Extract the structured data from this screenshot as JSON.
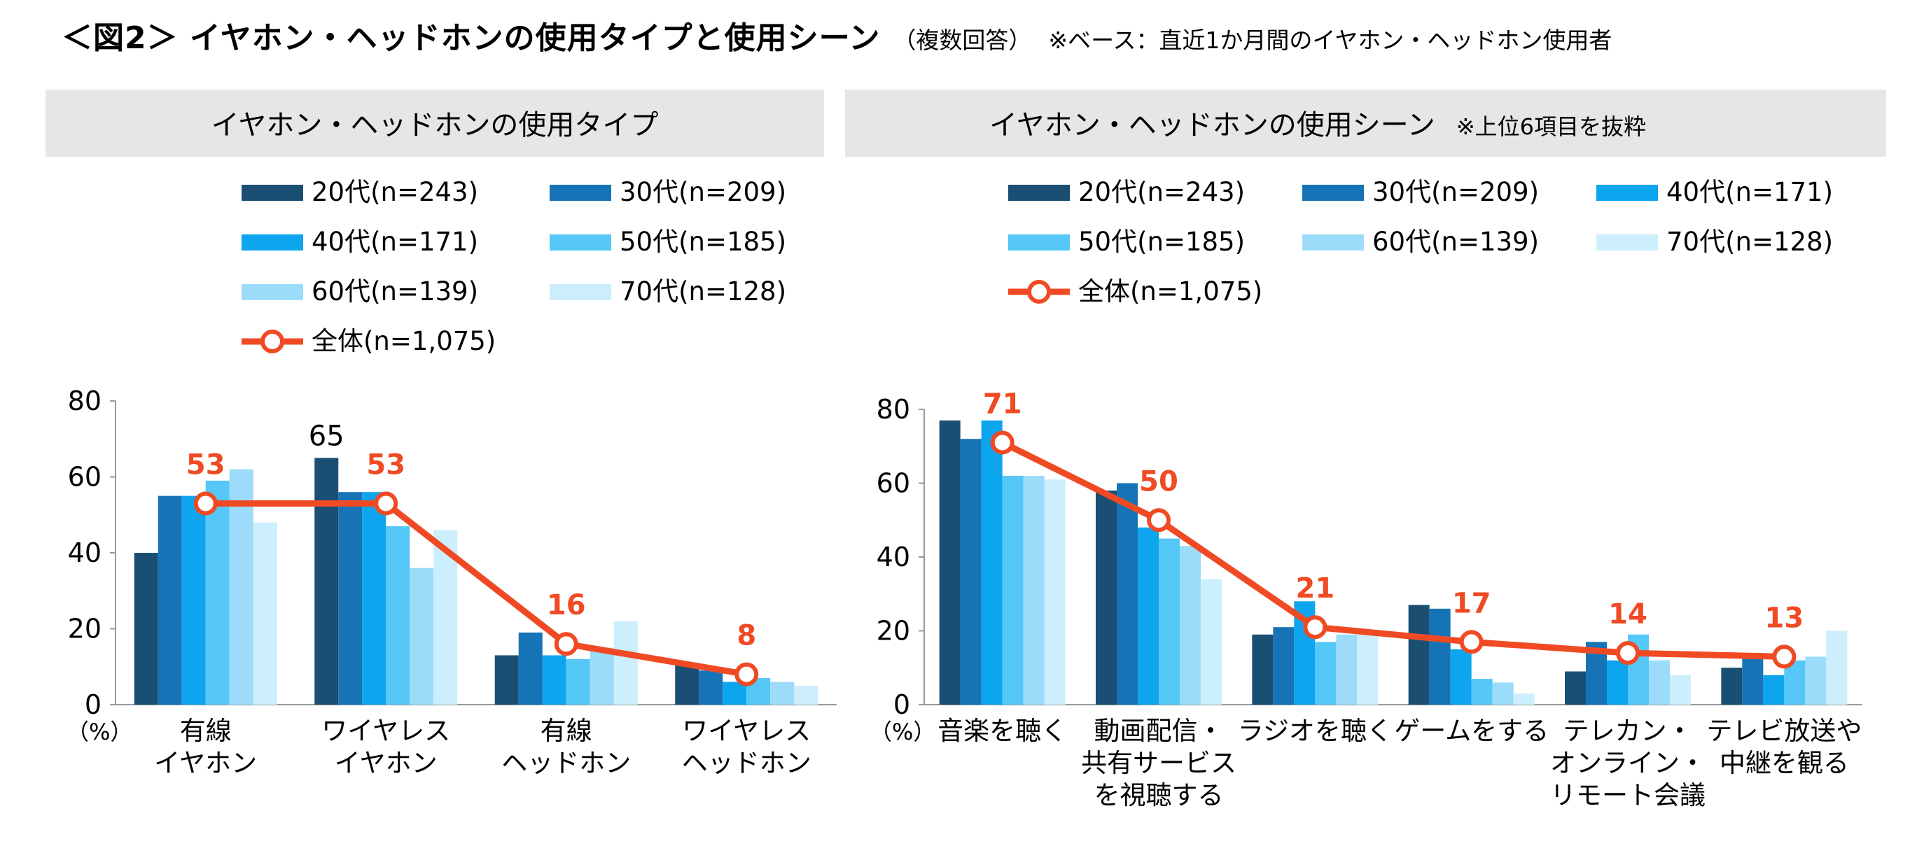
{
  "title": {
    "main": "＜図2＞ イヤホン・ヘッドホンの使用タイプと使用シーン",
    "note": "（複数回答）",
    "base": "※ベース：直近1か月間のイヤホン・ヘッドホン使用者"
  },
  "colors": {
    "series": [
      "#1a4f73",
      "#1674b6",
      "#0ea5ef",
      "#55c8f7",
      "#9cdcfa",
      "#cdeefc"
    ],
    "overall": "#f04a24",
    "panel_header_bg": "#e6e6e6"
  },
  "chart_data": [
    {
      "type": "bar",
      "title": "イヤホン・ヘッドホンの使用タイプ",
      "unit_label": "（%）",
      "ylim": [
        0,
        80
      ],
      "yticks": [
        0,
        20,
        40,
        60,
        80
      ],
      "categories": [
        "有線\nイヤホン",
        "ワイヤレス\nイヤホン",
        "有線\nヘッドホン",
        "ワイヤレス\nヘッドホン"
      ],
      "series": [
        {
          "name": "20代(n=243)",
          "values": [
            40,
            65,
            13,
            11
          ]
        },
        {
          "name": "30代(n=209)",
          "values": [
            55,
            56,
            19,
            9
          ]
        },
        {
          "name": "40代(n=171)",
          "values": [
            55,
            56,
            13,
            6
          ]
        },
        {
          "name": "50代(n=185)",
          "values": [
            59,
            47,
            12,
            7
          ]
        },
        {
          "name": "60代(n=139)",
          "values": [
            62,
            36,
            15,
            6
          ]
        },
        {
          "name": "70代(n=128)",
          "values": [
            48,
            46,
            22,
            5
          ]
        }
      ],
      "overall": {
        "name": "全体(n=1,075)",
        "values": [
          53,
          53,
          16,
          8
        ]
      },
      "annotations": [
        {
          "series_index": 0,
          "category_index": 1,
          "text": "65"
        }
      ]
    },
    {
      "type": "bar",
      "title": "イヤホン・ヘッドホンの使用シーン",
      "subtitle": "※上位6項目を抜粋",
      "unit_label": "（%）",
      "ylim": [
        0,
        80
      ],
      "yticks": [
        0,
        20,
        40,
        60,
        80
      ],
      "categories": [
        "音楽を聴く",
        "動画配信・\n共有サービス\nを視聴する",
        "ラジオを聴く",
        "ゲームをする",
        "テレカン・\nオンライン・\nリモート会議",
        "テレビ放送や\n中継を観る"
      ],
      "series": [
        {
          "name": "20代(n=243)",
          "values": [
            77,
            58,
            19,
            27,
            9,
            10
          ]
        },
        {
          "name": "30代(n=209)",
          "values": [
            72,
            60,
            21,
            26,
            17,
            14
          ]
        },
        {
          "name": "40代(n=171)",
          "values": [
            77,
            48,
            28,
            15,
            12,
            8
          ]
        },
        {
          "name": "50代(n=185)",
          "values": [
            62,
            45,
            17,
            7,
            19,
            12
          ]
        },
        {
          "name": "60代(n=139)",
          "values": [
            62,
            43,
            19,
            6,
            12,
            13
          ]
        },
        {
          "name": "70代(n=128)",
          "values": [
            61,
            34,
            19,
            3,
            8,
            20
          ]
        }
      ],
      "overall": {
        "name": "全体(n=1,075)",
        "values": [
          71,
          50,
          21,
          17,
          14,
          13
        ]
      },
      "annotations": []
    }
  ]
}
